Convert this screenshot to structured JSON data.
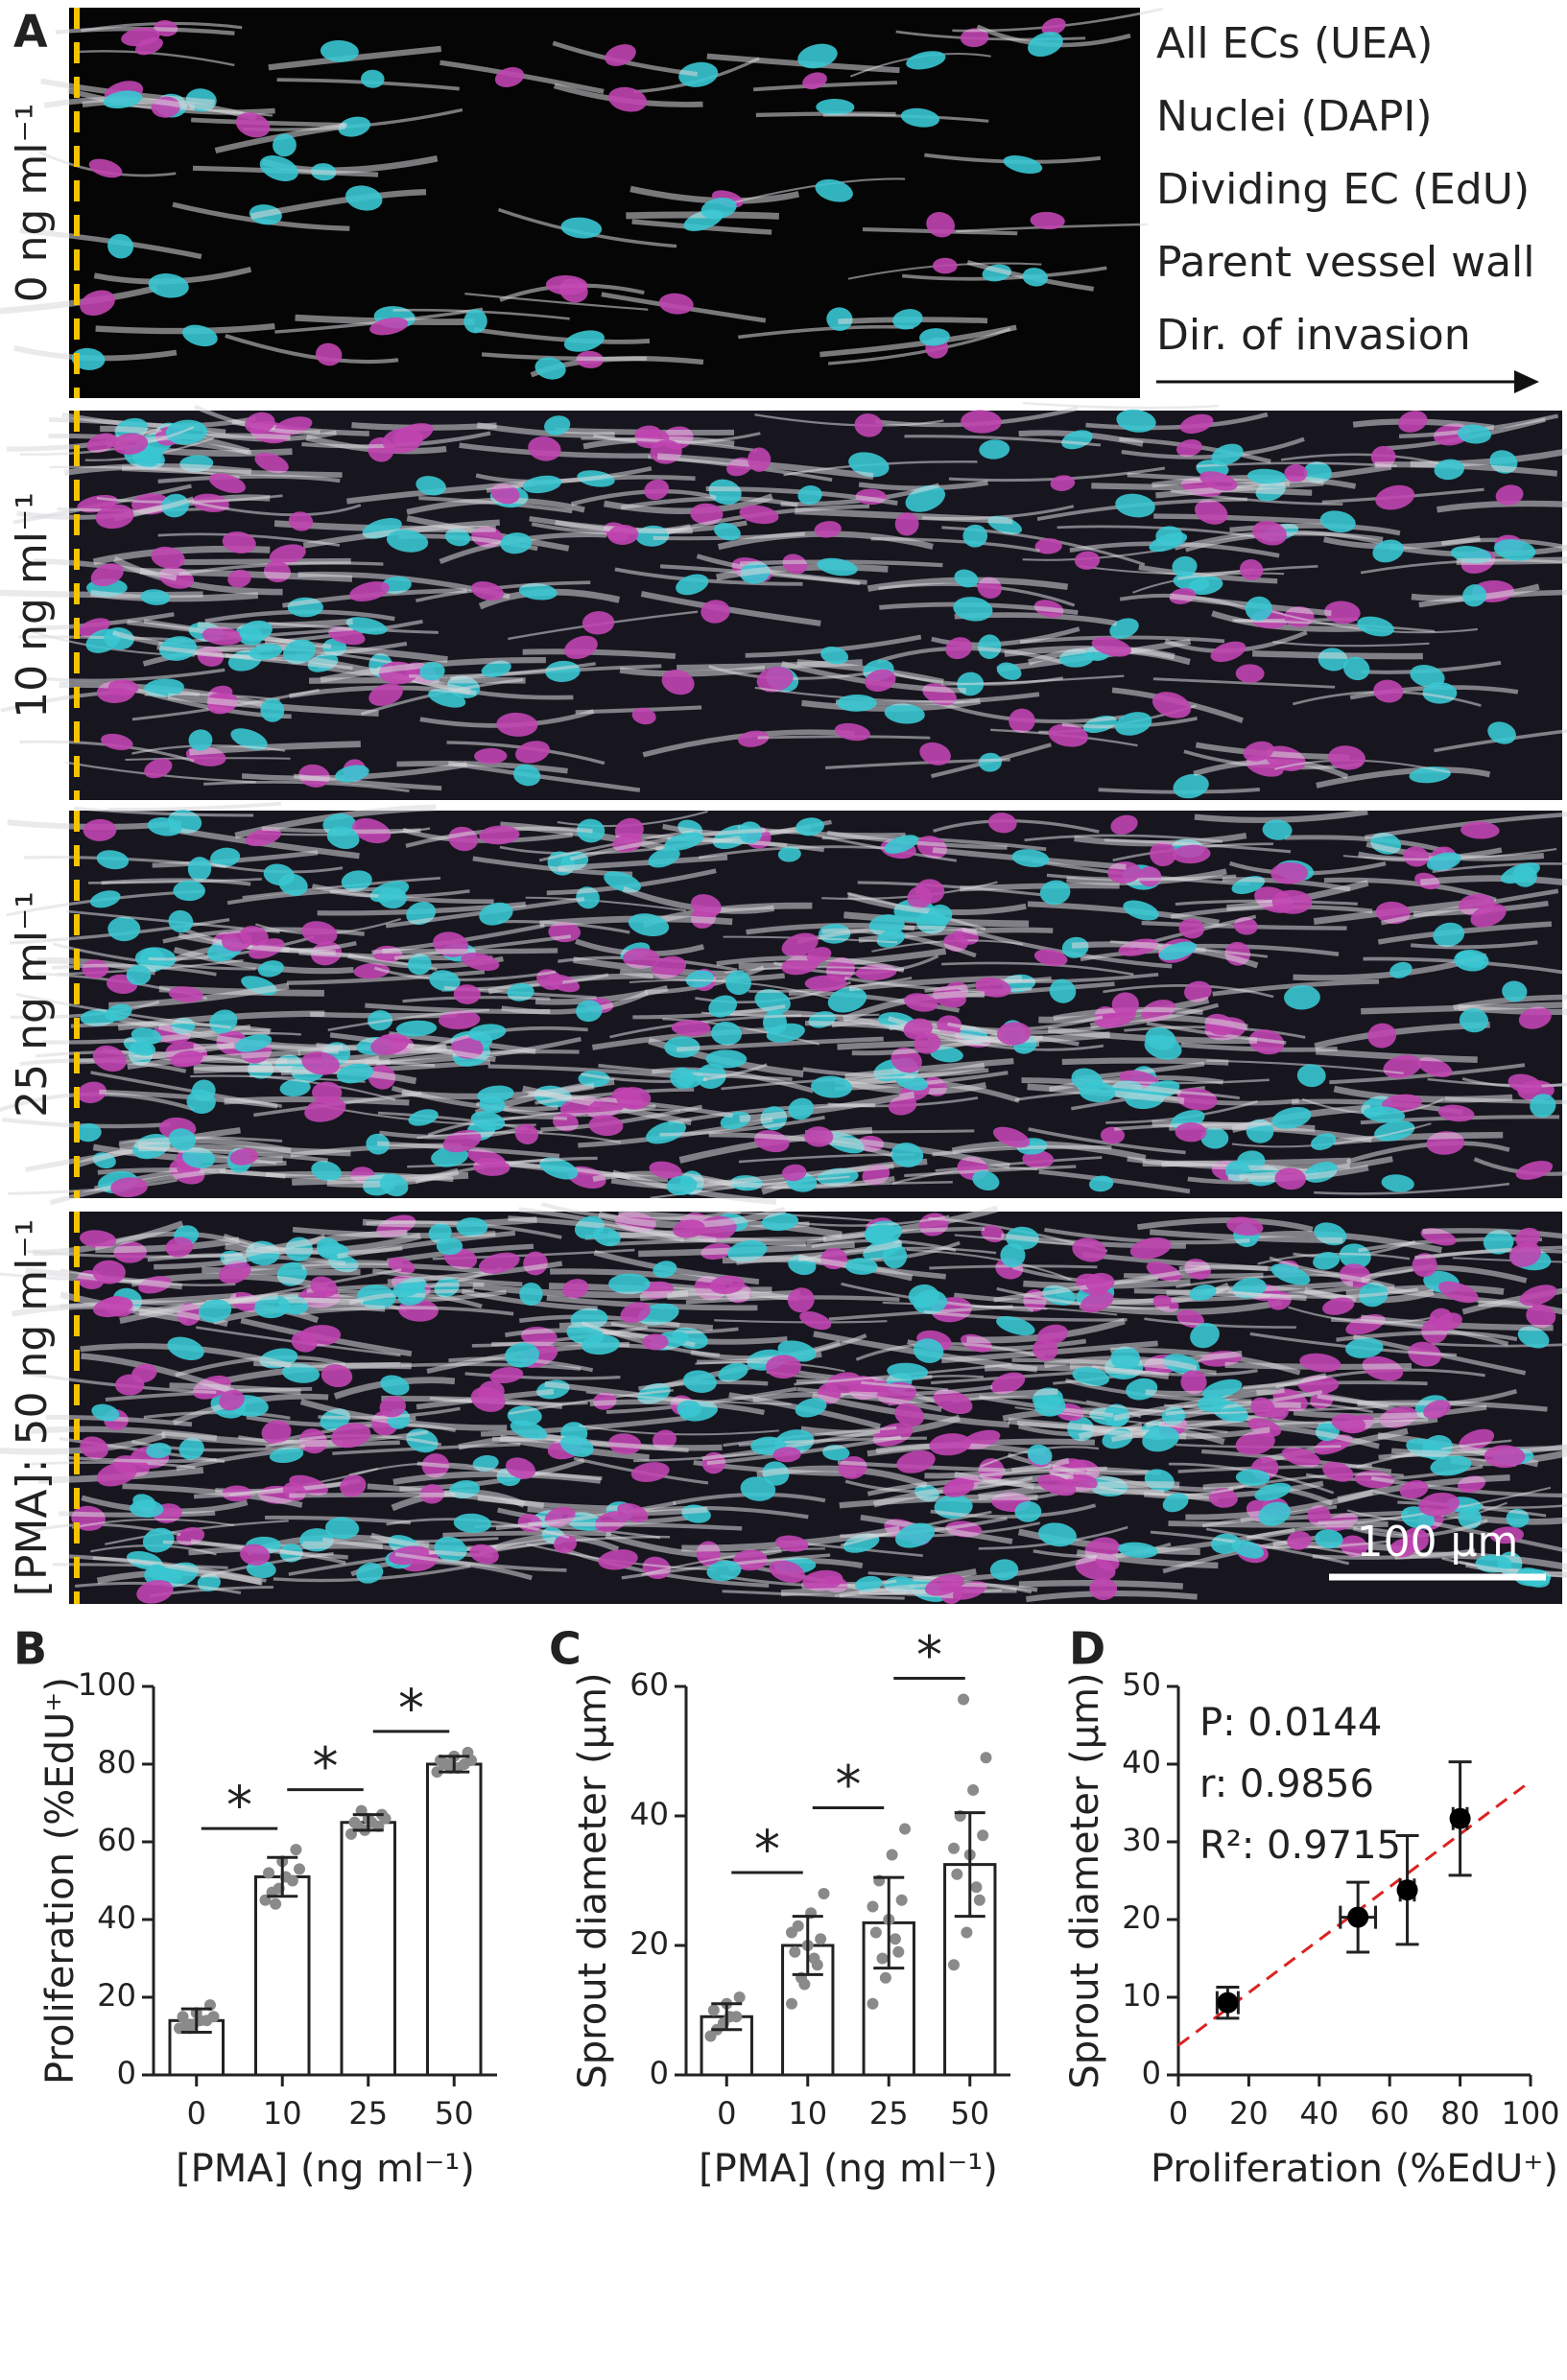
{
  "panel_a": {
    "label": "A",
    "rows": [
      "0 ng ml⁻¹",
      "10 ng ml⁻¹",
      "25 ng ml⁻¹",
      "[PMA]: 50 ng ml⁻¹"
    ],
    "legend": [
      {
        "text": "All ECs (UEA)",
        "color": "#9a9a9a"
      },
      {
        "text": "Nuclei (DAPI)",
        "color": "#b0309a"
      },
      {
        "text": "Dividing EC (EdU)",
        "color": "#2bb5c4"
      },
      {
        "text": "Parent vessel wall",
        "color": "#f2a93b"
      },
      {
        "text": "Dir. of invasion",
        "color": "#111111"
      }
    ],
    "scale_bar": "100 µm"
  },
  "chart_data": [
    {
      "type": "bar",
      "label": "B",
      "ylabel": "Proliferation (%EdU⁺)",
      "xlabel": "[PMA] (ng ml⁻¹)",
      "categories": [
        "0",
        "10",
        "25",
        "50"
      ],
      "values": [
        14,
        51,
        65,
        80
      ],
      "errors": [
        3,
        5,
        2,
        2
      ],
      "points": [
        [
          12,
          13,
          14,
          15,
          16,
          18,
          13,
          14,
          15,
          12
        ],
        [
          45,
          48,
          50,
          52,
          55,
          58,
          47,
          51,
          53,
          44
        ],
        [
          62,
          63,
          64,
          65,
          66,
          67,
          64,
          65,
          66,
          68
        ],
        [
          78,
          79,
          80,
          81,
          82,
          83,
          80,
          79,
          81,
          80
        ]
      ],
      "significance": [
        "*",
        "*",
        "*"
      ],
      "color": "#ffffff",
      "point_color": "#8a8a8a",
      "ylim": [
        0,
        100
      ],
      "yticks": [
        0,
        20,
        40,
        60,
        80,
        100
      ]
    },
    {
      "type": "bar",
      "label": "C",
      "ylabel": "Sprout diameter (µm)",
      "xlabel": "[PMA] (ng ml⁻¹)",
      "categories": [
        "0",
        "10",
        "25",
        "50"
      ],
      "values": [
        9,
        20,
        23.5,
        32.5
      ],
      "errors": [
        2,
        4.5,
        7,
        8
      ],
      "points": [
        [
          6,
          8,
          9,
          10,
          11,
          12,
          7,
          9
        ],
        [
          11,
          14,
          17,
          19,
          20,
          21,
          23,
          25,
          28,
          15,
          18,
          22
        ],
        [
          11,
          15,
          19,
          22,
          24,
          27,
          30,
          34,
          38,
          18,
          21,
          26
        ],
        [
          17,
          22,
          27,
          31,
          34,
          37,
          40,
          44,
          49,
          58,
          29,
          35
        ]
      ],
      "significance": [
        "*",
        "*",
        "*"
      ],
      "color": "#ffffff",
      "point_color": "#8a8a8a",
      "ylim": [
        0,
        60
      ],
      "yticks": [
        0,
        20,
        40,
        60
      ]
    },
    {
      "type": "scatter",
      "label": "D",
      "ylabel": "Sprout diameter (µm)",
      "xlabel": "Proliferation (%EdU⁺)",
      "x": [
        14,
        51,
        65,
        80
      ],
      "y": [
        9.3,
        20.3,
        23.8,
        33
      ],
      "xerr": [
        3,
        5,
        2,
        2
      ],
      "yerr": [
        2,
        4.5,
        7,
        7.3
      ],
      "fit": {
        "intercept": 3.8,
        "slope": 0.34,
        "color": "#dd2222"
      },
      "annotations": [
        "P: 0.0144",
        "r: 0.9856",
        "R²: 0.9715"
      ],
      "color": "#000000",
      "xlim": [
        0,
        100
      ],
      "xticks": [
        0,
        20,
        40,
        60,
        80,
        100
      ],
      "ylim": [
        0,
        50
      ],
      "yticks": [
        0,
        10,
        20,
        30,
        40,
        50
      ]
    }
  ]
}
